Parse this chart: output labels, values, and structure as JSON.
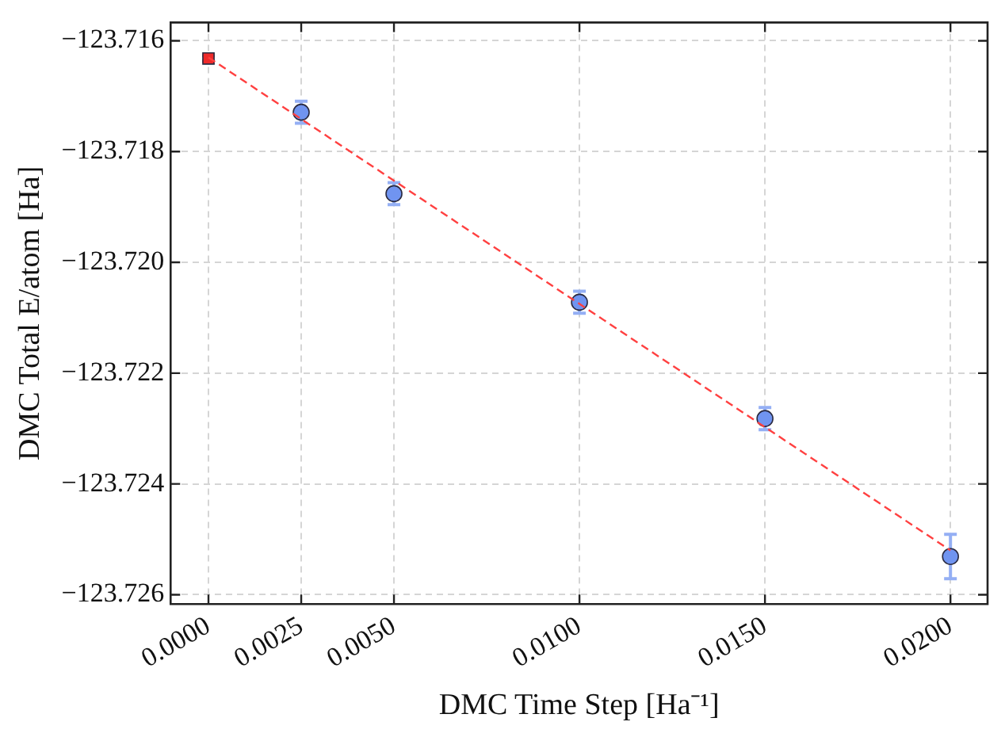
{
  "chart_data": {
    "type": "scatter",
    "xlabel": "DMC Time Step [Ha⁻¹]",
    "ylabel": "DMC Total E/atom [Ha]",
    "xlim": [
      -0.00102,
      0.021
    ],
    "ylim": [
      -123.72617,
      -123.71567
    ],
    "xticks": [
      {
        "value": 0,
        "label": "0.0000"
      },
      {
        "value": 0.0025,
        "label": "0.0025"
      },
      {
        "value": 0.005,
        "label": "0.0050"
      },
      {
        "value": 0.01,
        "label": "0.0100"
      },
      {
        "value": 0.015,
        "label": "0.0150"
      },
      {
        "value": 0.02,
        "label": "0.0200"
      }
    ],
    "yticks": [
      {
        "value": -123.726,
        "label": "−123.726"
      },
      {
        "value": -123.724,
        "label": "−123.724"
      },
      {
        "value": -123.722,
        "label": "−123.722"
      },
      {
        "value": -123.72,
        "label": "−123.720"
      },
      {
        "value": -123.718,
        "label": "−123.718"
      },
      {
        "value": -123.716,
        "label": "−123.716"
      }
    ],
    "grid": true,
    "series": [
      {
        "type": "line",
        "color": "#ff4040",
        "line_style": "dashed",
        "marker": "none",
        "x": [
          0,
          0.02
        ],
        "values": [
          -123.7163,
          -123.7252
        ]
      },
      {
        "color": "#7094f0",
        "marker": "circle",
        "x": [
          0.0025,
          0.005,
          0.01,
          0.015,
          0.02
        ],
        "values": [
          -123.71729,
          -123.71876,
          -123.72072,
          -123.72282,
          -123.72531
        ],
        "errors": [
          0.0002,
          0.0002,
          0.0002,
          0.0002,
          0.0004
        ]
      },
      {
        "color": "#ee2a2a",
        "marker": "square",
        "x": [
          0
        ],
        "values": [
          -123.71632
        ],
        "errors": [
          5e-05
        ]
      }
    ]
  }
}
